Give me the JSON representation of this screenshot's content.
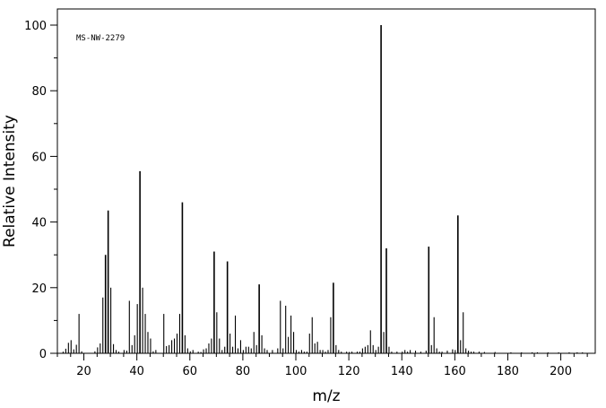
{
  "chart_data": {
    "type": "bar",
    "style": "mass-spectrum",
    "annotation": "MS-NW-2279",
    "xlabel": "m/z",
    "ylabel": "Relative Intensity",
    "xlim": [
      10,
      213
    ],
    "ylim": [
      0,
      100
    ],
    "xticks": [
      20,
      40,
      60,
      80,
      100,
      120,
      140,
      160,
      180,
      200
    ],
    "yticks": [
      0,
      20,
      40,
      60,
      80,
      100
    ],
    "x_minor_step": 5,
    "y_minor_step": 10,
    "grid": false,
    "legend": "none",
    "color": "#000000",
    "peaks": [
      [
        12,
        0.5
      ],
      [
        13,
        1.4
      ],
      [
        14,
        3.2
      ],
      [
        15,
        4.0
      ],
      [
        16,
        1.2
      ],
      [
        17,
        2.6
      ],
      [
        18,
        12.0
      ],
      [
        19,
        0.6
      ],
      [
        24,
        0.6
      ],
      [
        25,
        1.8
      ],
      [
        26,
        3.0
      ],
      [
        27,
        17.0
      ],
      [
        28,
        30.0
      ],
      [
        29,
        43.5
      ],
      [
        30,
        20.0
      ],
      [
        31,
        2.8
      ],
      [
        32,
        1.0
      ],
      [
        33,
        0.5
      ],
      [
        35,
        1.0
      ],
      [
        36,
        0.8
      ],
      [
        37,
        16.0
      ],
      [
        38,
        2.5
      ],
      [
        39,
        5.5
      ],
      [
        40,
        15.0
      ],
      [
        41,
        55.5
      ],
      [
        42,
        20.0
      ],
      [
        43,
        12.0
      ],
      [
        44,
        6.5
      ],
      [
        45,
        4.5
      ],
      [
        46,
        0.6
      ],
      [
        47,
        1.0
      ],
      [
        50,
        12.0
      ],
      [
        51,
        2.2
      ],
      [
        52,
        2.5
      ],
      [
        53,
        4.0
      ],
      [
        54,
        4.5
      ],
      [
        55,
        6.0
      ],
      [
        56,
        12.0
      ],
      [
        57,
        46.0
      ],
      [
        58,
        5.5
      ],
      [
        59,
        1.5
      ],
      [
        60,
        0.6
      ],
      [
        61,
        1.0
      ],
      [
        63,
        0.5
      ],
      [
        64,
        0.4
      ],
      [
        65,
        1.2
      ],
      [
        66,
        1.5
      ],
      [
        67,
        3.0
      ],
      [
        68,
        4.5
      ],
      [
        69,
        31.0
      ],
      [
        70,
        12.5
      ],
      [
        71,
        4.5
      ],
      [
        72,
        1.0
      ],
      [
        73,
        2.0
      ],
      [
        74,
        28.0
      ],
      [
        75,
        6.0
      ],
      [
        76,
        2.0
      ],
      [
        77,
        11.5
      ],
      [
        78,
        1.5
      ],
      [
        79,
        4.0
      ],
      [
        80,
        1.0
      ],
      [
        81,
        2.0
      ],
      [
        82,
        2.0
      ],
      [
        83,
        1.5
      ],
      [
        84,
        6.5
      ],
      [
        85,
        2.5
      ],
      [
        86,
        21.0
      ],
      [
        87,
        5.5
      ],
      [
        88,
        1.5
      ],
      [
        89,
        1.0
      ],
      [
        91,
        1.0
      ],
      [
        93,
        1.5
      ],
      [
        94,
        16.0
      ],
      [
        95,
        1.5
      ],
      [
        96,
        14.5
      ],
      [
        97,
        5.0
      ],
      [
        98,
        11.5
      ],
      [
        99,
        6.5
      ],
      [
        100,
        1.0
      ],
      [
        101,
        0.5
      ],
      [
        102,
        1.0
      ],
      [
        103,
        0.5
      ],
      [
        104,
        0.5
      ],
      [
        105,
        6.0
      ],
      [
        106,
        11.0
      ],
      [
        107,
        3.0
      ],
      [
        108,
        3.5
      ],
      [
        109,
        1.0
      ],
      [
        110,
        1.0
      ],
      [
        111,
        0.5
      ],
      [
        112,
        1.0
      ],
      [
        113,
        11.0
      ],
      [
        114,
        21.5
      ],
      [
        115,
        2.5
      ],
      [
        116,
        1.0
      ],
      [
        117,
        0.5
      ],
      [
        119,
        0.5
      ],
      [
        120,
        0.4
      ],
      [
        121,
        0.5
      ],
      [
        123,
        0.5
      ],
      [
        124,
        0.5
      ],
      [
        125,
        1.5
      ],
      [
        126,
        2.0
      ],
      [
        127,
        2.5
      ],
      [
        128,
        7.0
      ],
      [
        129,
        2.5
      ],
      [
        130,
        1.0
      ],
      [
        131,
        2.0
      ],
      [
        132,
        100.0
      ],
      [
        133,
        6.5
      ],
      [
        134,
        32.0
      ],
      [
        135,
        2.0
      ],
      [
        136,
        0.5
      ],
      [
        138,
        0.5
      ],
      [
        140,
        0.5
      ],
      [
        141,
        1.0
      ],
      [
        142,
        0.5
      ],
      [
        143,
        1.0
      ],
      [
        145,
        0.8
      ],
      [
        147,
        0.5
      ],
      [
        149,
        0.8
      ],
      [
        150,
        32.5
      ],
      [
        151,
        2.5
      ],
      [
        152,
        11.0
      ],
      [
        153,
        1.5
      ],
      [
        154,
        0.5
      ],
      [
        155,
        0.5
      ],
      [
        157,
        0.8
      ],
      [
        159,
        1.2
      ],
      [
        160,
        1.0
      ],
      [
        161,
        42.0
      ],
      [
        162,
        4.0
      ],
      [
        163,
        12.5
      ],
      [
        164,
        1.5
      ],
      [
        165,
        0.8
      ],
      [
        166,
        0.5
      ],
      [
        167,
        0.5
      ],
      [
        169,
        0.5
      ],
      [
        171,
        0.4
      ],
      [
        175,
        0.4
      ],
      [
        181,
        0.3
      ],
      [
        185,
        0.3
      ],
      [
        189,
        0.3
      ],
      [
        191,
        0.3
      ],
      [
        195,
        0.3
      ],
      [
        199,
        0.3
      ],
      [
        203,
        0.3
      ],
      [
        206,
        0.3
      ],
      [
        208,
        0.3
      ]
    ]
  }
}
